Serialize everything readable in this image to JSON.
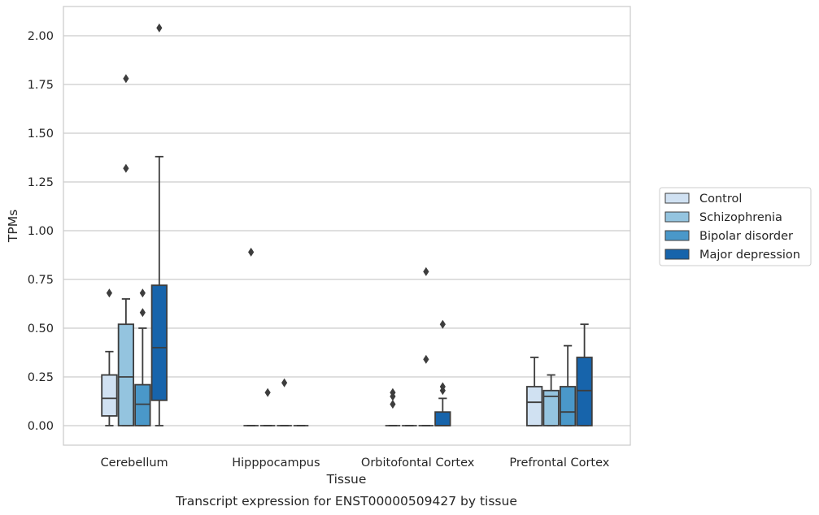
{
  "caption": "Transcript expression for ENST00000509427 by tissue",
  "chart_data": {
    "type": "box",
    "xlabel": "Tissue",
    "ylabel": "TPMs",
    "ylim": [
      -0.1,
      2.15
    ],
    "yticks": [
      0.0,
      0.25,
      0.5,
      0.75,
      1.0,
      1.25,
      1.5,
      1.75,
      2.0
    ],
    "ytick_labels": [
      "0.00",
      "0.25",
      "0.50",
      "0.75",
      "1.00",
      "1.25",
      "1.50",
      "1.75",
      "2.00"
    ],
    "grid": "horizontal",
    "legend_position": "right",
    "categories": [
      "Cerebellum",
      "Hipppocampus",
      "Orbitofontal Cortex",
      "Prefrontal Cortex"
    ],
    "series": [
      {
        "name": "Control",
        "color": "#d0e1f2",
        "boxes": [
          {
            "whislo": 0.0,
            "q1": 0.05,
            "med": 0.14,
            "q3": 0.26,
            "whishi": 0.38,
            "fliers": [
              0.68
            ]
          },
          {
            "whislo": 0.0,
            "q1": 0.0,
            "med": 0.0,
            "q3": 0.0,
            "whishi": 0.0,
            "fliers": [
              0.89
            ]
          },
          {
            "whislo": 0.0,
            "q1": 0.0,
            "med": 0.0,
            "q3": 0.0,
            "whishi": 0.0,
            "fliers": [
              0.11,
              0.15,
              0.17
            ]
          },
          {
            "whislo": 0.0,
            "q1": 0.0,
            "med": 0.12,
            "q3": 0.2,
            "whishi": 0.35,
            "fliers": []
          }
        ]
      },
      {
        "name": "Schizophrenia",
        "color": "#94c4df",
        "boxes": [
          {
            "whislo": 0.0,
            "q1": 0.0,
            "med": 0.25,
            "q3": 0.52,
            "whishi": 0.65,
            "fliers": [
              1.32,
              1.78
            ]
          },
          {
            "whislo": 0.0,
            "q1": 0.0,
            "med": 0.0,
            "q3": 0.0,
            "whishi": 0.0,
            "fliers": [
              0.17
            ]
          },
          {
            "whislo": 0.0,
            "q1": 0.0,
            "med": 0.0,
            "q3": 0.0,
            "whishi": 0.0,
            "fliers": []
          },
          {
            "whislo": 0.0,
            "q1": 0.0,
            "med": 0.15,
            "q3": 0.18,
            "whishi": 0.26,
            "fliers": []
          }
        ]
      },
      {
        "name": "Bipolar disorder",
        "color": "#4a98c9",
        "boxes": [
          {
            "whislo": 0.0,
            "q1": 0.0,
            "med": 0.11,
            "q3": 0.21,
            "whishi": 0.5,
            "fliers": [
              0.58,
              0.68
            ]
          },
          {
            "whislo": 0.0,
            "q1": 0.0,
            "med": 0.0,
            "q3": 0.0,
            "whishi": 0.0,
            "fliers": [
              0.22
            ]
          },
          {
            "whislo": 0.0,
            "q1": 0.0,
            "med": 0.0,
            "q3": 0.0,
            "whishi": 0.0,
            "fliers": [
              0.34,
              0.79
            ]
          },
          {
            "whislo": 0.0,
            "q1": 0.0,
            "med": 0.07,
            "q3": 0.2,
            "whishi": 0.41,
            "fliers": []
          }
        ]
      },
      {
        "name": "Major depression",
        "color": "#1764ab",
        "boxes": [
          {
            "whislo": 0.0,
            "q1": 0.13,
            "med": 0.4,
            "q3": 0.72,
            "whishi": 1.38,
            "fliers": [
              2.04
            ]
          },
          {
            "whislo": 0.0,
            "q1": 0.0,
            "med": 0.0,
            "q3": 0.0,
            "whishi": 0.0,
            "fliers": []
          },
          {
            "whislo": 0.0,
            "q1": 0.0,
            "med": 0.0,
            "q3": 0.07,
            "whishi": 0.14,
            "fliers": [
              0.18,
              0.2,
              0.52
            ]
          },
          {
            "whislo": 0.0,
            "q1": 0.0,
            "med": 0.18,
            "q3": 0.35,
            "whishi": 0.52,
            "fliers": []
          }
        ]
      }
    ]
  }
}
